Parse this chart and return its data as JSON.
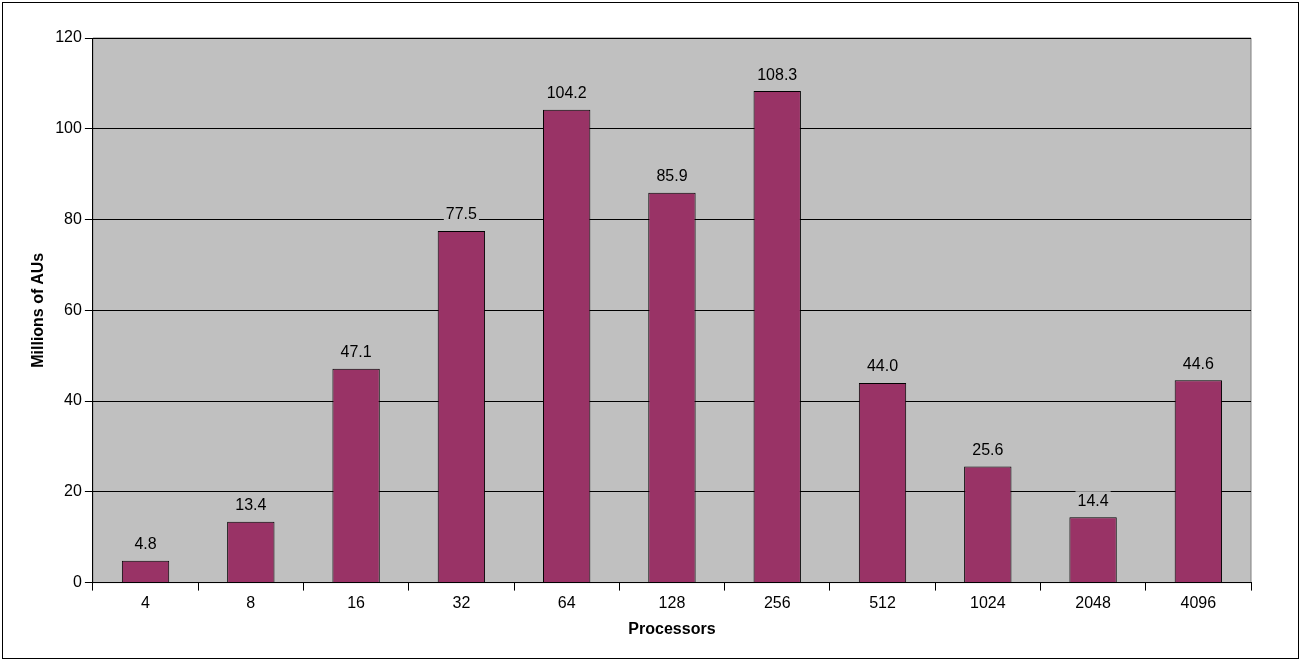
{
  "chart_data": {
    "type": "bar",
    "xlabel": "Processors",
    "ylabel": "Millions of AUs",
    "categories": [
      "4",
      "8",
      "16",
      "32",
      "64",
      "128",
      "256",
      "512",
      "1024",
      "2048",
      "4096"
    ],
    "values": [
      4.8,
      13.4,
      47.1,
      77.5,
      104.2,
      85.9,
      108.3,
      44.0,
      25.6,
      14.4,
      44.6
    ],
    "value_labels": [
      "4.8",
      "13.4",
      "47.1",
      "77.5",
      "104.2",
      "85.9",
      "108.3",
      "44.0",
      "25.6",
      "14.4",
      "44.6"
    ],
    "color": "#993366",
    "ylim": [
      0,
      120
    ],
    "yticks": [
      0,
      20,
      40,
      60,
      80,
      100,
      120
    ],
    "grid": "y",
    "legend": false
  }
}
